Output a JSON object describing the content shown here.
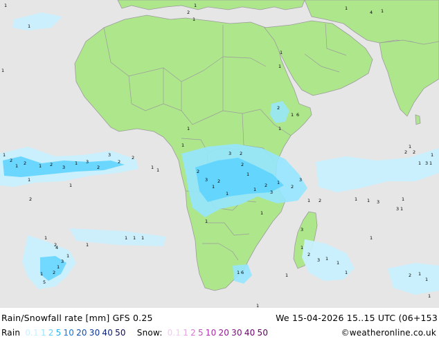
{
  "title": "Rain/Snowfall rate [mm] GFS 0.25",
  "timestamp": "We 15-04-2026 15..15 UTC (06+153",
  "credit": "©weatheronline.co.uk",
  "legend": {
    "rain_label": "Rain",
    "rain_values": [
      {
        "text": "0.1",
        "color": "#c8f0ff"
      },
      {
        "text": "1",
        "color": "#96e6ff"
      },
      {
        "text": "2",
        "color": "#5ad2ff"
      },
      {
        "text": "5",
        "color": "#28b4f0"
      },
      {
        "text": "10",
        "color": "#1478dc"
      },
      {
        "text": "20",
        "color": "#0a50b4"
      },
      {
        "text": "30",
        "color": "#0a3296"
      },
      {
        "text": "40",
        "color": "#0a1e78"
      },
      {
        "text": "50",
        "color": "#0a0a5a"
      }
    ],
    "snow_label": "Snow:",
    "snow_values": [
      {
        "text": "0.1",
        "color": "#f5c8f5"
      },
      {
        "text": "1",
        "color": "#e6a0e6"
      },
      {
        "text": "2",
        "color": "#d278d2"
      },
      {
        "text": "5",
        "color": "#be50be"
      },
      {
        "text": "10",
        "color": "#aa28aa"
      },
      {
        "text": "20",
        "color": "#961496"
      },
      {
        "text": "30",
        "color": "#820a82"
      },
      {
        "text": "40",
        "color": "#6e006e"
      },
      {
        "text": "50",
        "color": "#5a005a"
      }
    ]
  },
  "colors": {
    "ocean": "#e6e6e6",
    "land": "#aee68c",
    "border": "#9b9b9b",
    "rain_light": "#c8f0ff",
    "rain_mid": "#5ad2ff",
    "rain_heavy": "#28b4f0"
  },
  "map_labels": [
    "1",
    "2",
    "3",
    "4",
    "5",
    "6"
  ]
}
